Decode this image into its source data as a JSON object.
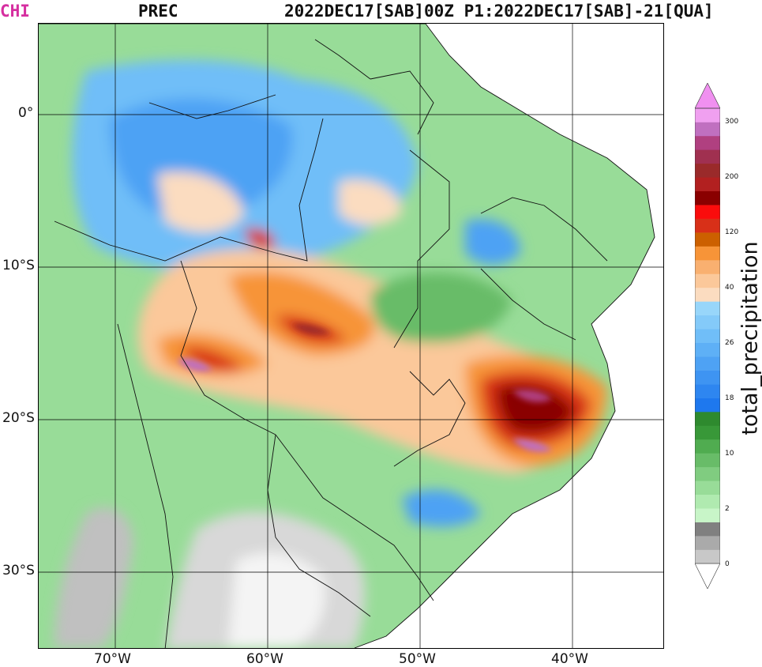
{
  "header": {
    "model": "CHI",
    "variable": "PREC",
    "time": "2022DEC17[SAB]00Z P1:2022DEC17[SAB]-21[QUA]"
  },
  "axes": {
    "lat_labels": [
      "0°",
      "10°S",
      "20°S",
      "30°S"
    ],
    "lon_labels": [
      "70°W",
      "60°W",
      "50°W",
      "40°W"
    ]
  },
  "colorbar": {
    "label": "total_precipitation",
    "ticks": [
      "0",
      "2",
      "10",
      "18",
      "26",
      "40",
      "120",
      "200",
      "300"
    ],
    "colors": [
      "#c8c8c8",
      "#aaaaaa",
      "#808080",
      "#c8f5c8",
      "#b0eab0",
      "#98dc98",
      "#80cc80",
      "#68bc68",
      "#50ac50",
      "#389838",
      "#2e8a2e",
      "#1e78ee",
      "#2e86f0",
      "#3e94f2",
      "#4ea2f4",
      "#5eb0f6",
      "#70bef8",
      "#84caf9",
      "#98d6fa",
      "#fbdcc0",
      "#fbc89a",
      "#f9b070",
      "#f79438",
      "#cc6000",
      "#d83018",
      "#fa0c0c",
      "#8a0000",
      "#b22020",
      "#9a2a2a",
      "#a03050",
      "#b04080",
      "#c070c0",
      "#f0a0f0"
    ]
  },
  "colors": {
    "model_label": "#d62fa0",
    "text": "#111111"
  }
}
